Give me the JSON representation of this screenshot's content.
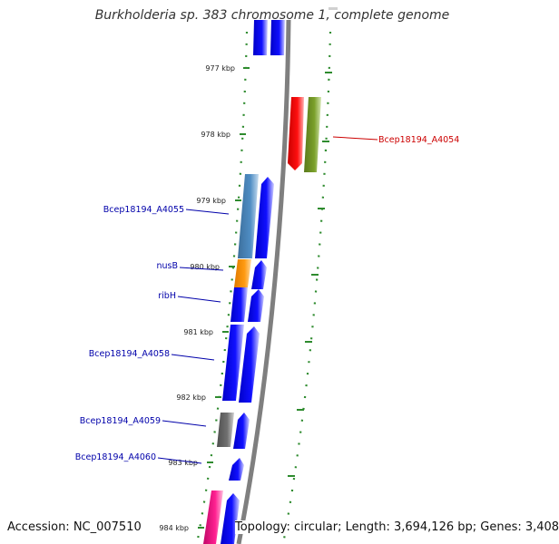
{
  "title": "Burkholderia sp. 383 chromosome 1, complete genome",
  "accession": "Accession: NC_007510",
  "summary": "Topology: circular; Length: 3,694,126 bp; Genes: 3,408",
  "ticks": [
    "977 kbp",
    "978 kbp",
    "979 kbp",
    "980 kbp",
    "981 kbp",
    "982 kbp",
    "983 kbp",
    "984 kbp"
  ],
  "gene_labels": [
    {
      "text": "Bcep18194_A4054",
      "color": "#cc0000"
    },
    {
      "text": "Bcep18194_A4055",
      "color": "#0000aa"
    },
    {
      "text": "nusB",
      "color": "#0000aa"
    },
    {
      "text": "ribH",
      "color": "#0000aa"
    },
    {
      "text": "Bcep18194_A4058",
      "color": "#0000aa"
    },
    {
      "text": "Bcep18194_A4059",
      "color": "#0000aa"
    },
    {
      "text": "Bcep18194_A4060",
      "color": "#0000aa"
    }
  ],
  "colors": {
    "backbone": "#7f7f7f",
    "dots": "#2e8b2e",
    "blue_gene": "#0000ee",
    "steel_gene": "#4682b4",
    "orange_gene": "#ff8c00",
    "gray_gene": "#606060",
    "red_gene": "#ee0000",
    "olive_gene": "#6b8e23",
    "magenta_gene": "#e0107f"
  }
}
